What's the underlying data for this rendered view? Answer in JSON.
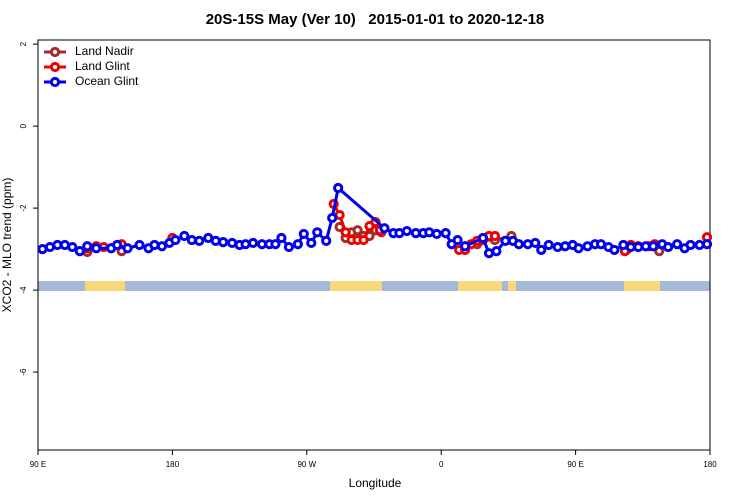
{
  "chart_data": {
    "type": "line",
    "title": "20S-15S May (Ver 10)   2015-01-01 to 2020-12-18",
    "xlabel": "Longitude",
    "ylabel": "XCO2 - MLO trend (ppm)",
    "xlim": [
      90,
      540
    ],
    "xticks": [
      {
        "value": 90,
        "label": "90 E"
      },
      {
        "value": 180,
        "label": "180"
      },
      {
        "value": 270,
        "label": "90 W"
      },
      {
        "value": 360,
        "label": "0"
      },
      {
        "value": 450,
        "label": "90 E"
      },
      {
        "value": 540,
        "label": "180"
      }
    ],
    "ylim": [
      -7.9,
      2.1
    ],
    "yticks": [
      2,
      0,
      -2,
      -4,
      -6
    ],
    "legend": "top-left",
    "series": [
      {
        "name": "Land Nadir",
        "color": "#a52a2a",
        "x": [
          123,
          null,
          146,
          null,
          292,
          296,
          300,
          304,
          308,
          312,
          316,
          320,
          null,
          384,
          388,
          396,
          407,
          null,
          484,
          null,
          506
        ],
        "values": [
          -3.07,
          null,
          -3.05,
          null,
          -2.46,
          -2.73,
          -2.59,
          -2.54,
          -2.68,
          -2.68,
          -2.54,
          -2.59,
          null,
          -2.88,
          -2.78,
          -2.78,
          -2.68,
          null,
          -3.02,
          null,
          -3.05
        ]
      },
      {
        "name": "Land Glint",
        "color": "#ee0000",
        "x": [
          123,
          129,
          134,
          null,
          146,
          null,
          180,
          null,
          288,
          292,
          296,
          300,
          304,
          308,
          312,
          316,
          319,
          null,
          372,
          376,
          380,
          384,
          388,
          392,
          396,
          null,
          483,
          487,
          492,
          499,
          503,
          null,
          538
        ],
        "values": [
          -2.98,
          -2.93,
          -2.95,
          null,
          -2.88,
          null,
          -2.73,
          null,
          -1.9,
          -2.17,
          -2.59,
          -2.78,
          -2.78,
          -2.78,
          -2.44,
          -2.34,
          -2.54,
          null,
          -3.02,
          -3.02,
          -2.88,
          -2.8,
          -2.78,
          -2.68,
          -2.68,
          null,
          -3.05,
          -2.9,
          -2.93,
          -2.93,
          -2.88,
          null,
          -2.71
        ]
      },
      {
        "name": "Ocean Glint",
        "color": "#0000ee",
        "x": [
          93,
          98,
          103,
          108,
          113,
          118,
          123,
          129,
          139,
          143,
          150,
          158,
          164,
          168,
          173,
          178,
          182,
          188,
          193,
          198,
          204,
          209,
          214,
          220,
          225,
          229,
          234,
          240,
          245,
          249,
          253,
          258,
          264,
          268,
          273,
          277,
          283,
          287,
          291,
          322,
          328,
          332,
          337,
          343,
          348,
          352,
          357,
          363,
          367,
          371,
          376,
          388,
          392,
          397,
          403,
          408,
          412,
          418,
          423,
          427,
          432,
          438,
          443,
          448,
          452,
          458,
          463,
          467,
          472,
          476,
          482,
          487,
          492,
          497,
          502,
          508,
          512,
          518,
          523,
          527,
          533,
          538
        ],
        "values": [
          -3.0,
          -2.95,
          -2.9,
          -2.9,
          -2.95,
          -3.05,
          -2.93,
          -2.98,
          -2.98,
          -2.9,
          -2.98,
          -2.9,
          -2.98,
          -2.9,
          -2.93,
          -2.85,
          -2.78,
          -2.68,
          -2.78,
          -2.8,
          -2.73,
          -2.8,
          -2.83,
          -2.85,
          -2.9,
          -2.88,
          -2.85,
          -2.88,
          -2.88,
          -2.88,
          -2.73,
          -2.95,
          -2.88,
          -2.63,
          -2.85,
          -2.59,
          -2.8,
          -2.24,
          -1.51,
          -2.49,
          -2.61,
          -2.61,
          -2.56,
          -2.61,
          -2.61,
          -2.59,
          -2.63,
          -2.61,
          -2.88,
          -2.78,
          -2.93,
          -2.73,
          -3.1,
          -3.05,
          -2.8,
          -2.8,
          -2.88,
          -2.88,
          -2.85,
          -3.02,
          -2.9,
          -2.95,
          -2.93,
          -2.9,
          -2.98,
          -2.93,
          -2.88,
          -2.88,
          -2.95,
          -3.02,
          -2.9,
          -2.95,
          -2.95,
          -2.93,
          -2.93,
          -2.88,
          -2.95,
          -2.88,
          -2.98,
          -2.9,
          -2.9,
          -2.88
        ]
      }
    ]
  }
}
